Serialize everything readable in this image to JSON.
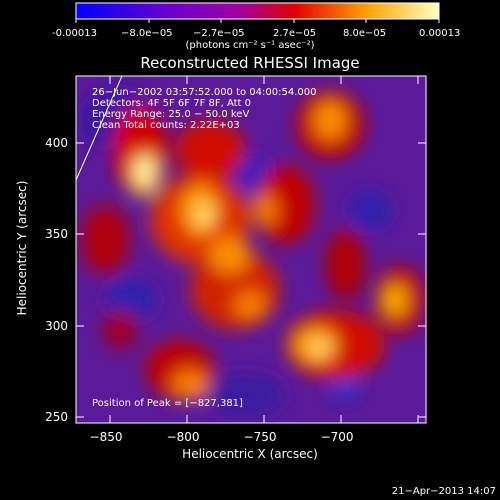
{
  "colorbar": {
    "tick_labels": [
      "-0.00013",
      "−8.0e−05",
      "−2.7e−05",
      "2.7e−05",
      "8.0e−05",
      "0.00013"
    ],
    "units": "(photons cm⁻² s⁻¹ asec⁻²)"
  },
  "plot": {
    "title": "Reconstructed RHESSI Image",
    "xlabel": "Heliocentric X (arcsec)",
    "ylabel": "Heliocentric Y (arcsec)",
    "x_ticks": [
      "−850",
      "−800",
      "−750",
      "−700"
    ],
    "y_ticks": [
      "400",
      "350",
      "300",
      "250"
    ]
  },
  "overlay": {
    "time_range": "26−Jun−2002 03:57:52.000 to 04:00:54.000",
    "detectors": "Detectors: 4F 5F 6F 7F 8F, Att 0",
    "energy_range": "Energy Range: 25.0 − 50.0 keV",
    "clean_counts": "Clean     Total counts: 2.22E+03",
    "peak_position": "Position of Peak = [−827,381]"
  },
  "footer": {
    "date": "21−Apr−2013 14:07"
  }
}
